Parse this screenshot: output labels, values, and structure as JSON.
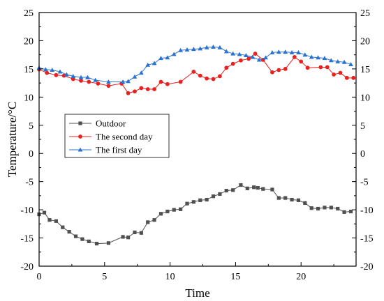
{
  "chart_data": {
    "type": "line",
    "title": "",
    "xlabel": "Time",
    "ylabel": "Temperature/°C",
    "xlim": [
      0,
      24.2
    ],
    "ylim": [
      -20,
      25
    ],
    "x_ticks": [
      0,
      5,
      10,
      15,
      20
    ],
    "y_ticks": [
      -20,
      -15,
      -10,
      -5,
      0,
      5,
      10,
      15,
      20,
      25
    ],
    "grid": false,
    "right_axis_mirrored": true,
    "legend": {
      "placement": "center-left",
      "order": [
        "Outdoor",
        "The second day",
        "The first day"
      ]
    },
    "series": [
      {
        "name": "Outdoor",
        "color": "#505050",
        "marker": "square",
        "x": [
          0,
          0.4,
          0.8,
          1.3,
          1.8,
          2.3,
          2.8,
          3.3,
          3.8,
          4.4,
          5.3,
          6.4,
          6.8,
          7.3,
          7.8,
          8.3,
          8.8,
          9.3,
          9.8,
          10.3,
          10.8,
          11.3,
          11.8,
          12.3,
          12.8,
          13.3,
          13.8,
          14.3,
          14.8,
          15.4,
          15.9,
          16.4,
          16.7,
          17.1,
          17.8,
          18.3,
          18.8,
          19.3,
          19.8,
          20.3,
          20.8,
          21.3,
          21.8,
          22.3,
          22.8,
          23.3,
          23.8
        ],
        "values": [
          -10.8,
          -10.5,
          -11.8,
          -12.0,
          -13.1,
          -13.9,
          -14.7,
          -15.2,
          -15.6,
          -16.0,
          -15.9,
          -14.8,
          -14.9,
          -14.0,
          -14.1,
          -12.2,
          -11.8,
          -10.7,
          -10.3,
          -10.0,
          -9.9,
          -8.9,
          -8.6,
          -8.3,
          -8.2,
          -7.6,
          -7.2,
          -6.6,
          -6.5,
          -5.6,
          -6.2,
          -6.0,
          -6.1,
          -6.3,
          -6.4,
          -7.9,
          -7.9,
          -8.2,
          -8.3,
          -8.8,
          -9.7,
          -9.8,
          -9.6,
          -9.6,
          -9.8,
          -10.4,
          -10.3
        ]
      },
      {
        "name": "The second day",
        "color": "#e8201e",
        "marker": "circle",
        "x": [
          0,
          0.6,
          1.3,
          1.9,
          2.6,
          3.2,
          3.8,
          4.5,
          5.3,
          6.3,
          6.8,
          7.3,
          7.8,
          8.3,
          8.8,
          9.3,
          9.8,
          10.8,
          11.8,
          12.3,
          12.8,
          13.3,
          13.8,
          14.3,
          14.8,
          15.4,
          16.0,
          16.5,
          17.1,
          17.8,
          18.3,
          18.8,
          19.5,
          20.0,
          20.5,
          21.5,
          22.0,
          22.5,
          23.0,
          23.5,
          24.0
        ],
        "values": [
          14.9,
          14.3,
          13.9,
          13.8,
          13.2,
          12.9,
          12.7,
          12.4,
          12.0,
          12.4,
          10.7,
          11.0,
          11.6,
          11.4,
          11.4,
          12.7,
          12.3,
          12.7,
          14.5,
          13.8,
          13.3,
          13.2,
          13.7,
          15.2,
          15.9,
          16.5,
          16.8,
          17.7,
          16.6,
          14.4,
          14.8,
          15.0,
          17.1,
          16.3,
          15.2,
          15.3,
          15.3,
          14.0,
          14.3,
          13.4,
          13.4
        ]
      },
      {
        "name": "The first day",
        "color": "#2a72d0",
        "marker": "triangle",
        "x": [
          0,
          0.5,
          1.0,
          1.6,
          2.1,
          2.6,
          3.2,
          3.7,
          4.3,
          5.3,
          6.4,
          6.8,
          7.3,
          7.8,
          8.3,
          8.8,
          9.3,
          9.8,
          10.3,
          10.8,
          11.3,
          11.8,
          12.3,
          12.8,
          13.3,
          13.8,
          14.3,
          14.8,
          15.3,
          15.8,
          16.3,
          16.8,
          17.3,
          17.8,
          18.3,
          18.8,
          19.3,
          19.8,
          20.3,
          20.8,
          21.3,
          21.8,
          22.3,
          22.8,
          23.3,
          23.8
        ],
        "values": [
          15.2,
          14.9,
          14.8,
          14.5,
          14.0,
          13.7,
          13.5,
          13.5,
          13.0,
          12.7,
          12.7,
          12.8,
          13.6,
          14.3,
          15.7,
          16.0,
          16.9,
          17.0,
          17.6,
          18.3,
          18.4,
          18.5,
          18.6,
          18.8,
          18.9,
          18.8,
          18.1,
          17.7,
          17.6,
          17.4,
          17.1,
          16.6,
          17.0,
          17.9,
          18.0,
          18.0,
          17.9,
          17.9,
          17.5,
          17.1,
          17.0,
          16.9,
          16.5,
          16.3,
          16.2,
          15.8
        ]
      }
    ]
  }
}
